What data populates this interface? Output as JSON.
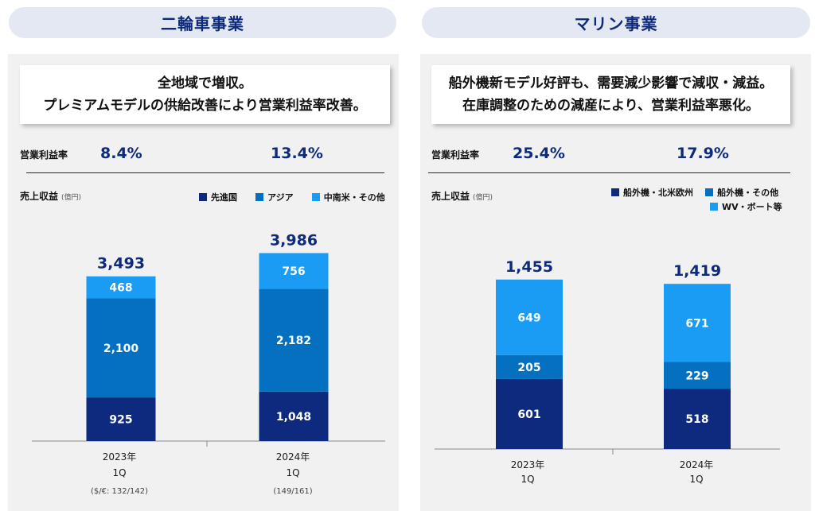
{
  "colors": {
    "dark": "#0d2a7f",
    "mid": "#0670c0",
    "light": "#1a9cf5",
    "navy_text": "#0e2a7a"
  },
  "header": {
    "left_title": "二輪車事業",
    "right_title": "マリン事業"
  },
  "left": {
    "summary_line1": "全地域で増収。",
    "summary_line2": "プレミアムモデルの供給改善により営業利益率改善。",
    "margin_label": "営業利益率",
    "margins": [
      "8.4%",
      "13.4%"
    ],
    "revenue_label": "売上収益",
    "unit": "(億円)",
    "legend": [
      "先進国",
      "アジア",
      "中南米・その他"
    ],
    "year_labels": [
      "2023年",
      "2024年"
    ],
    "quarter_labels": [
      "1Q",
      "1Q"
    ],
    "fx_notes": [
      "($/€: 132/142)",
      "(149/161)"
    ]
  },
  "right": {
    "summary_line1": "船外機新モデル好評も、需要減少影響で減収・減益。",
    "summary_line2": "在庫調整のための減産により、営業利益率悪化。",
    "margin_label": "営業利益率",
    "margins": [
      "25.4%",
      "17.9%"
    ],
    "revenue_label": "売上収益",
    "unit": "(億円)",
    "legend": [
      "船外機・北米欧州",
      "船外機・その他",
      "WV・ボート等"
    ],
    "year_labels": [
      "2023年",
      "2024年"
    ],
    "quarter_labels": [
      "1Q",
      "1Q"
    ]
  },
  "chart_data": [
    {
      "type": "bar",
      "stacked": true,
      "title": "二輪車事業",
      "ylabel": "売上収益",
      "categories": [
        "2023年 1Q",
        "2024年 1Q"
      ],
      "series": [
        {
          "name": "先進国",
          "values": [
            925,
            1048
          ]
        },
        {
          "name": "アジア",
          "values": [
            2100,
            2182
          ]
        },
        {
          "name": "中南米・その他",
          "values": [
            468,
            756
          ]
        }
      ],
      "totals": [
        3493,
        3986
      ],
      "total_labels": [
        "3,493",
        "3,986"
      ],
      "ylim": [
        0,
        4600
      ]
    },
    {
      "type": "bar",
      "stacked": true,
      "title": "マリン事業",
      "ylabel": "売上収益",
      "categories": [
        "2023年 1Q",
        "2024年 1Q"
      ],
      "series": [
        {
          "name": "船外機・北米欧州",
          "values": [
            601,
            518
          ]
        },
        {
          "name": "船外機・その他",
          "values": [
            205,
            229
          ]
        },
        {
          "name": "WV・ボート等",
          "values": [
            649,
            671
          ]
        }
      ],
      "totals": [
        1455,
        1419
      ],
      "total_labels": [
        "1,455",
        "1,419"
      ],
      "ylim": [
        0,
        1815
      ]
    }
  ]
}
